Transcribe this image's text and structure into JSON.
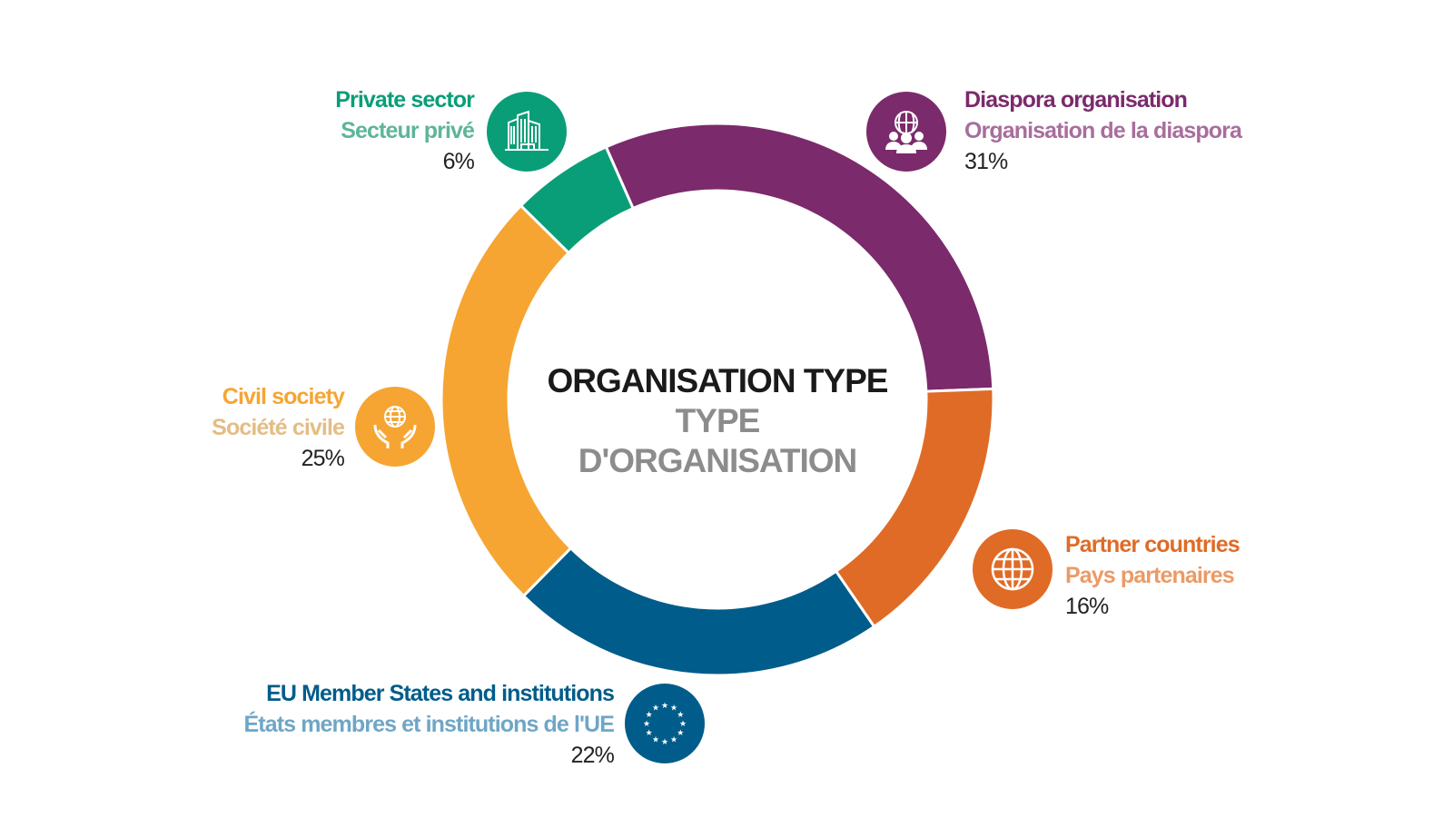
{
  "chart_data": {
    "type": "pie",
    "donut": true,
    "title": "ORGANISATION TYPE",
    "subtitle": "TYPE D'ORGANISATION",
    "unit": "%",
    "slices": [
      {
        "label_en": "Diaspora organisation",
        "label_fr": "Organisation de la diaspora",
        "value": 31,
        "value_label": "31%",
        "color": "#7B2A6B",
        "label_color_fr": "#A86E9C",
        "icon": "people-globe-icon"
      },
      {
        "label_en": "Partner countries",
        "label_fr": "Pays partenaires",
        "value": 16,
        "value_label": "16%",
        "color": "#E06B26",
        "label_color_fr": "#EC9A66",
        "icon": "globe-icon"
      },
      {
        "label_en": "EU Member States and institutions",
        "label_fr": "États membres et institutions de l'UE",
        "value": 22,
        "value_label": "22%",
        "color": "#005C8A",
        "label_color_fr": "#6FA6C6",
        "icon": "eu-stars-icon"
      },
      {
        "label_en": "Civil society",
        "label_fr": "Société civile",
        "value": 25,
        "value_label": "25%",
        "color": "#F6A533",
        "label_color_fr": "#E3BD86",
        "icon": "hands-globe-icon"
      },
      {
        "label_en": "Private sector",
        "label_fr": "Secteur privé",
        "value": 6,
        "value_label": "6%",
        "color": "#0A9E78",
        "label_color_fr": "#5DB59A",
        "icon": "buildings-icon"
      }
    ]
  }
}
